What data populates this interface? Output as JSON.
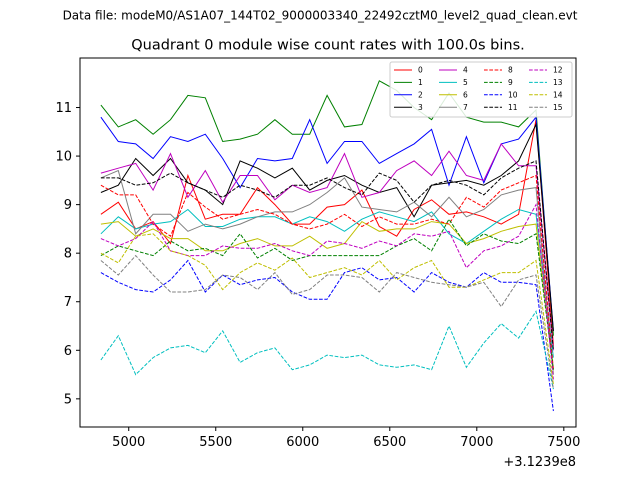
{
  "chart_data": {
    "type": "line",
    "suptitle": "Data file: modeM0/AS1A07_144T02_9000003340_22492cztM0_level2_quad_clean.evt",
    "title": "Quadrant 0 module wise count rates with 100.0s bins.",
    "xlabel": "",
    "ylabel": "",
    "x_offset_label": "+3.1239e8",
    "xlim": [
      4720,
      7570
    ],
    "ylim": [
      4.42,
      12.02
    ],
    "xticks": [
      5000,
      5500,
      6000,
      6500,
      7000,
      7500
    ],
    "yticks": [
      5,
      6,
      7,
      8,
      9,
      10,
      11
    ],
    "grid": false,
    "legend_position": "top-right",
    "x": [
      4840,
      4940,
      5040,
      5140,
      5240,
      5340,
      5440,
      5540,
      5640,
      5740,
      5840,
      5940,
      6040,
      6140,
      6240,
      6340,
      6440,
      6540,
      6640,
      6740,
      6840,
      6940,
      7040,
      7140,
      7240,
      7340,
      7440
    ],
    "series": [
      {
        "name": "0",
        "color": "#ff0000",
        "dash": "solid",
        "values": [
          8.8,
          9.05,
          8.5,
          8.65,
          8.2,
          9.6,
          8.7,
          8.8,
          8.8,
          9.35,
          9.0,
          8.6,
          8.6,
          8.95,
          9.0,
          9.3,
          8.55,
          8.35,
          8.9,
          9.1,
          8.8,
          8.85,
          8.75,
          8.6,
          8.8,
          10.75,
          6.1
        ]
      },
      {
        "name": "1",
        "color": "#008000",
        "dash": "solid",
        "values": [
          11.05,
          10.6,
          10.75,
          10.45,
          10.75,
          11.25,
          11.2,
          10.3,
          10.35,
          10.45,
          10.75,
          10.45,
          10.45,
          11.25,
          10.6,
          10.65,
          11.55,
          11.35,
          11.0,
          10.75,
          11.3,
          10.8,
          10.7,
          10.7,
          10.6,
          10.95,
          6.3
        ]
      },
      {
        "name": "2",
        "color": "#0000ff",
        "dash": "solid",
        "values": [
          10.8,
          10.3,
          10.25,
          9.95,
          10.4,
          10.3,
          10.45,
          9.95,
          9.35,
          9.95,
          9.9,
          9.95,
          10.75,
          9.85,
          10.3,
          10.3,
          9.85,
          10.05,
          10.25,
          10.55,
          9.4,
          10.4,
          9.45,
          10.25,
          10.35,
          10.8,
          6.4
        ]
      },
      {
        "name": "3",
        "color": "#000000",
        "dash": "solid",
        "values": [
          9.25,
          9.4,
          9.95,
          9.6,
          9.95,
          9.45,
          9.3,
          9.0,
          9.9,
          9.75,
          9.55,
          9.75,
          9.3,
          9.5,
          9.6,
          9.4,
          9.25,
          9.35,
          8.75,
          9.4,
          9.45,
          9.5,
          9.4,
          9.6,
          9.9,
          10.65,
          6.4
        ]
      },
      {
        "name": "4",
        "color": "#bf00bf",
        "dash": "solid",
        "values": [
          9.65,
          9.75,
          9.85,
          9.3,
          10.05,
          9.15,
          9.7,
          9.05,
          9.6,
          9.6,
          9.1,
          9.4,
          9.25,
          9.35,
          10.05,
          9.15,
          9.25,
          9.7,
          9.9,
          9.6,
          10.1,
          9.6,
          9.5,
          10.25,
          9.8,
          9.8,
          6.0
        ]
      },
      {
        "name": "5",
        "color": "#00bfbf",
        "dash": "solid",
        "values": [
          8.4,
          8.75,
          8.5,
          8.6,
          8.65,
          8.9,
          8.55,
          8.55,
          8.7,
          8.75,
          8.75,
          8.6,
          8.75,
          8.65,
          8.45,
          8.7,
          8.85,
          8.75,
          8.65,
          8.85,
          8.4,
          8.2,
          8.45,
          8.7,
          8.9,
          8.8,
          5.85
        ]
      },
      {
        "name": "6",
        "color": "#bfbf00",
        "dash": "solid",
        "values": [
          8.6,
          8.65,
          8.35,
          8.5,
          8.3,
          8.3,
          8.05,
          8.05,
          8.2,
          8.3,
          8.15,
          8.15,
          8.35,
          8.1,
          8.2,
          8.65,
          8.45,
          8.5,
          8.5,
          8.65,
          8.6,
          8.2,
          8.3,
          8.45,
          8.55,
          8.6,
          5.6
        ]
      },
      {
        "name": "7",
        "color": "#808080",
        "dash": "solid",
        "values": [
          9.55,
          9.7,
          8.4,
          8.8,
          8.8,
          8.45,
          8.6,
          8.5,
          8.6,
          8.75,
          8.85,
          8.85,
          9.0,
          9.25,
          9.55,
          8.95,
          8.9,
          8.85,
          9.05,
          8.75,
          9.15,
          8.75,
          8.9,
          9.2,
          9.3,
          9.35,
          5.5
        ]
      },
      {
        "name": "8",
        "color": "#ff0000",
        "dash": "dashed",
        "values": [
          9.4,
          9.2,
          9.2,
          8.6,
          8.35,
          9.25,
          8.95,
          8.7,
          8.8,
          8.9,
          8.8,
          8.6,
          8.5,
          8.6,
          8.8,
          8.55,
          8.75,
          8.6,
          8.6,
          8.7,
          8.6,
          9.15,
          8.95,
          9.3,
          9.45,
          9.6,
          5.6
        ]
      },
      {
        "name": "9",
        "color": "#008000",
        "dash": "dashed",
        "values": [
          7.95,
          8.15,
          8.05,
          7.95,
          8.25,
          8.05,
          8.1,
          7.95,
          8.4,
          7.9,
          8.1,
          7.85,
          7.95,
          7.95,
          7.95,
          7.95,
          7.95,
          8.15,
          8.3,
          8.05,
          8.7,
          8.15,
          8.4,
          8.25,
          8.2,
          8.4,
          5.6
        ]
      },
      {
        "name": "10",
        "color": "#0000ff",
        "dash": "dashed",
        "values": [
          7.6,
          7.4,
          7.25,
          7.2,
          7.45,
          7.85,
          7.2,
          7.55,
          7.35,
          7.45,
          7.5,
          7.2,
          7.05,
          7.05,
          7.6,
          7.7,
          7.45,
          7.5,
          7.2,
          7.6,
          7.4,
          7.3,
          7.6,
          7.4,
          7.4,
          7.35,
          4.75
        ]
      },
      {
        "name": "11",
        "color": "#000000",
        "dash": "dashed",
        "values": [
          9.55,
          9.55,
          9.4,
          9.45,
          9.65,
          9.45,
          9.3,
          9.15,
          9.4,
          9.3,
          9.15,
          9.4,
          9.4,
          9.55,
          9.35,
          9.2,
          9.65,
          9.5,
          9.05,
          9.4,
          9.5,
          9.4,
          9.2,
          9.55,
          9.75,
          9.9,
          6.0
        ]
      },
      {
        "name": "12",
        "color": "#bf00bf",
        "dash": "dashed",
        "values": [
          8.3,
          8.15,
          8.3,
          8.65,
          8.05,
          7.95,
          7.95,
          8.15,
          8.1,
          8.1,
          8.2,
          8.05,
          7.95,
          8.25,
          8.2,
          8.1,
          8.25,
          8.15,
          8.4,
          8.35,
          8.45,
          7.7,
          8.05,
          8.15,
          8.35,
          9.0,
          5.4
        ]
      },
      {
        "name": "13",
        "color": "#00bfbf",
        "dash": "dashed",
        "values": [
          5.8,
          6.3,
          5.5,
          5.85,
          6.05,
          6.1,
          5.95,
          6.4,
          5.75,
          5.95,
          6.05,
          5.6,
          5.7,
          5.9,
          5.85,
          5.9,
          5.7,
          5.65,
          5.7,
          5.6,
          6.5,
          5.65,
          6.15,
          6.55,
          6.25,
          6.8,
          5.2
        ]
      },
      {
        "name": "14",
        "color": "#bfbf00",
        "dash": "dashed",
        "values": [
          8.0,
          7.8,
          8.35,
          8.4,
          8.05,
          7.95,
          7.75,
          7.25,
          7.6,
          7.8,
          7.65,
          7.9,
          7.5,
          7.6,
          7.7,
          7.55,
          7.85,
          7.45,
          7.7,
          7.85,
          7.3,
          7.3,
          7.45,
          7.6,
          7.6,
          7.85,
          5.3
        ]
      },
      {
        "name": "15",
        "color": "#808080",
        "dash": "dashed",
        "values": [
          7.85,
          7.55,
          7.95,
          7.55,
          7.2,
          7.2,
          7.25,
          7.55,
          7.5,
          7.25,
          7.6,
          7.15,
          7.25,
          7.55,
          7.55,
          7.5,
          7.2,
          7.6,
          7.5,
          7.4,
          7.35,
          7.3,
          7.4,
          6.9,
          7.45,
          7.55,
          5.2
        ]
      }
    ]
  }
}
